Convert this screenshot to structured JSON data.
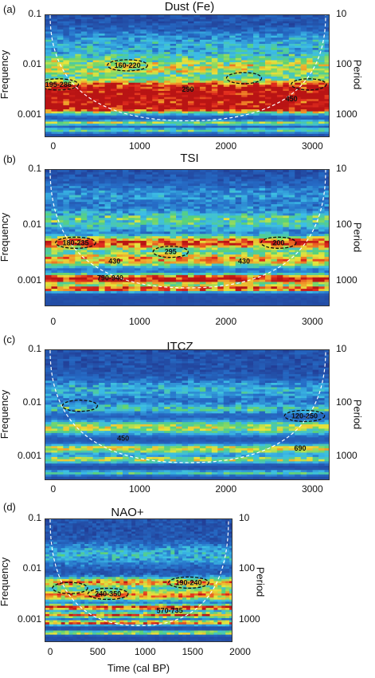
{
  "chart_data": [
    {
      "type": "heatmap",
      "panel": "(a)",
      "title": "Dust (Fe)",
      "ylabel": "Frequency",
      "ylabel_right": "Period",
      "xlabel": "",
      "yticks": [
        "0.1",
        "0.01",
        "0.001"
      ],
      "periodticks": [
        "10",
        "100",
        "1000"
      ],
      "xticks": [
        "0",
        "1000",
        "2000",
        "3000"
      ],
      "xlim": [
        -100,
        3200
      ],
      "annotations": [
        {
          "text": "195-286",
          "x": 50,
          "period": 240,
          "contour": true
        },
        {
          "text": "160-220",
          "x": 850,
          "period": 100,
          "contour": true
        },
        {
          "text": "290",
          "x": 1550,
          "period": 300,
          "contour": false
        },
        {
          "text": "",
          "x": 2200,
          "period": 180,
          "contour": true
        },
        {
          "text": "",
          "x": 2950,
          "period": 240,
          "contour": true
        },
        {
          "text": "450",
          "x": 2750,
          "period": 470,
          "contour": false
        }
      ]
    },
    {
      "type": "heatmap",
      "panel": "(b)",
      "title": "TSI",
      "ylabel": "Frequency",
      "ylabel_right": "Period",
      "xlabel": "",
      "yticks": [
        "0.1",
        "0.01",
        "0.001"
      ],
      "periodticks": [
        "10",
        "100",
        "1000"
      ],
      "xticks": [
        "0",
        "1000",
        "2000",
        "3000"
      ],
      "xlim": [
        -100,
        3200
      ],
      "annotations": [
        {
          "text": "180-235",
          "x": 250,
          "period": 200,
          "contour": true
        },
        {
          "text": "295",
          "x": 1350,
          "period": 290,
          "contour": true
        },
        {
          "text": "200",
          "x": 2600,
          "period": 200,
          "contour": true
        },
        {
          "text": "430",
          "x": 700,
          "period": 430,
          "contour": false
        },
        {
          "text": "430",
          "x": 2200,
          "period": 430,
          "contour": false
        },
        {
          "text": "790-940",
          "x": 650,
          "period": 850,
          "contour": false
        }
      ]
    },
    {
      "type": "heatmap",
      "panel": "(c)",
      "title": "ITCZ",
      "ylabel": "Frequency",
      "ylabel_right": "Period",
      "xlabel": "",
      "yticks": [
        "0.1",
        "0.01",
        "0.001"
      ],
      "periodticks": [
        "10",
        "100",
        "1000"
      ],
      "xticks": [
        "0",
        "1000",
        "2000",
        "3000"
      ],
      "xlim": [
        -100,
        3200
      ],
      "annotations": [
        {
          "text": "",
          "x": 300,
          "period": 110,
          "contour": true
        },
        {
          "text": "120-250",
          "x": 2900,
          "period": 170,
          "contour": true
        },
        {
          "text": "450",
          "x": 800,
          "period": 450,
          "contour": false
        },
        {
          "text": "690",
          "x": 2850,
          "period": 690,
          "contour": false
        }
      ]
    },
    {
      "type": "heatmap",
      "panel": "(d)",
      "title": "NAO+",
      "ylabel": "Frequency",
      "ylabel_right": "Period",
      "xlabel": "Time (cal BP)",
      "yticks": [
        "0.1",
        "0.01",
        "0.001"
      ],
      "periodticks": [
        "10",
        "100",
        "1000"
      ],
      "xticks": [
        "0",
        "500",
        "1000",
        "1500",
        "2000"
      ],
      "xlim": [
        -60,
        1920
      ],
      "annotations": [
        {
          "text": "",
          "x": 200,
          "period": 230,
          "contour": true
        },
        {
          "text": "240-350",
          "x": 600,
          "period": 300,
          "contour": true
        },
        {
          "text": "190-240",
          "x": 1450,
          "period": 180,
          "contour": true
        },
        {
          "text": "570-735",
          "x": 1250,
          "period": 650,
          "contour": false
        }
      ]
    }
  ]
}
